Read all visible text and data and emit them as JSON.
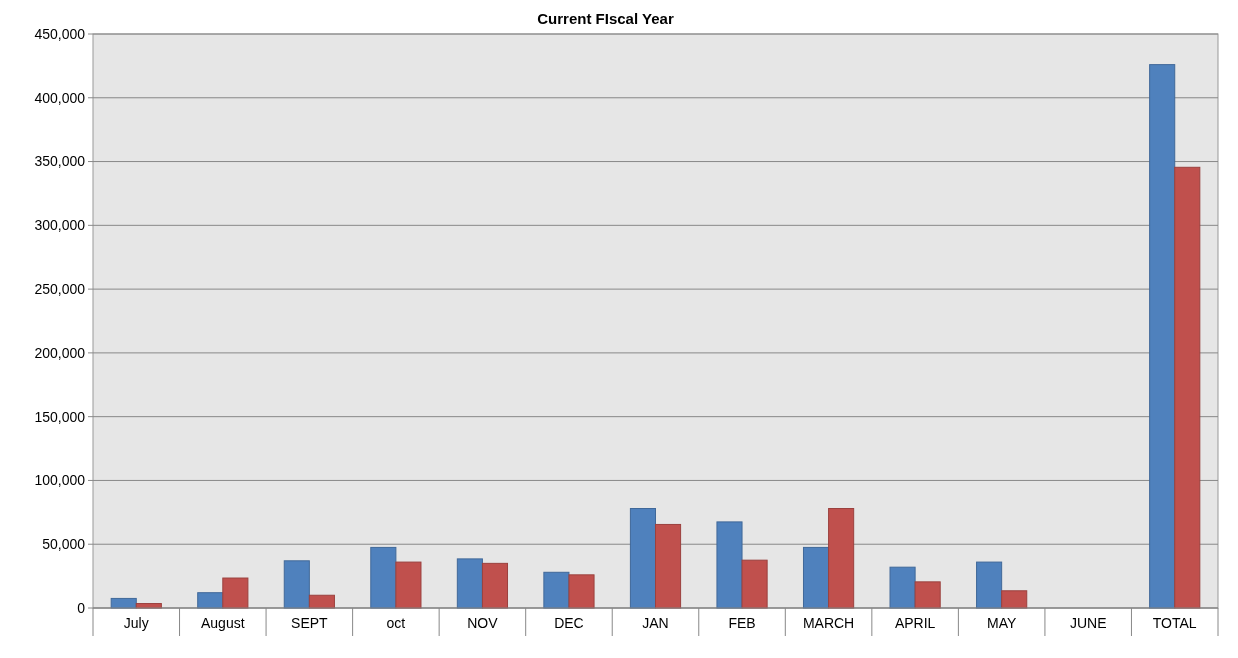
{
  "chart_data": {
    "type": "bar",
    "title": "Current FIscal Year",
    "categories": [
      "July",
      "August",
      "SEPT",
      "oct",
      "NOV",
      "DEC",
      "JAN",
      "FEB",
      "MARCH",
      "APRIL",
      "MAY",
      "JUNE",
      "TOTAL"
    ],
    "series": [
      {
        "color": "#4f81bd",
        "values": [
          7500,
          12000,
          37000,
          47500,
          38500,
          28000,
          78000,
          67500,
          47500,
          32000,
          36000,
          null,
          426000
        ]
      },
      {
        "color": "#c0504d",
        "values": [
          3500,
          23500,
          10000,
          36000,
          35000,
          26000,
          65500,
          37500,
          78000,
          20500,
          13500,
          null,
          345500
        ]
      }
    ],
    "ylim": [
      0,
      450000
    ],
    "yticks": [
      {
        "value": 0,
        "label": "0"
      },
      {
        "value": 50000,
        "label": "50,000"
      },
      {
        "value": 100000,
        "label": "100,000"
      },
      {
        "value": 150000,
        "label": "150,000"
      },
      {
        "value": 200000,
        "label": "200,000"
      },
      {
        "value": 250000,
        "label": "250,000"
      },
      {
        "value": 300000,
        "label": "300,000"
      },
      {
        "value": 350000,
        "label": "350,000"
      },
      {
        "value": 400000,
        "label": "400,000"
      },
      {
        "value": 450000,
        "label": "450,000"
      }
    ],
    "grid": "y"
  }
}
